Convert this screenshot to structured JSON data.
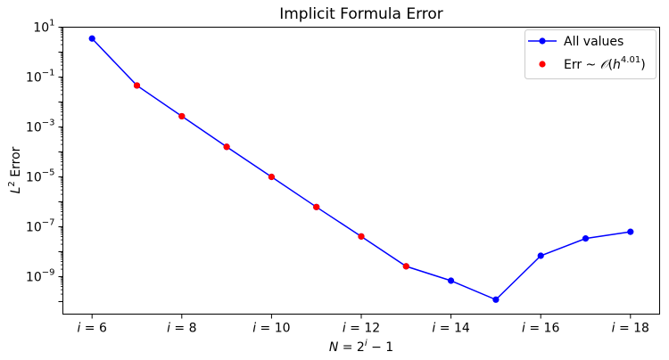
{
  "chart_data": {
    "type": "line",
    "title": "Implicit Formula Error",
    "xlabel": "N = 2^i − 1",
    "ylabel": "L^2 Error",
    "yscale": "log",
    "ylim_exponent": [
      -10.5,
      1.0
    ],
    "xlim": [
      5.35,
      18.65
    ],
    "x_tick_labels": [
      "i = 6",
      "i = 8",
      "i = 10",
      "i = 12",
      "i = 14",
      "i = 16",
      "i = 18"
    ],
    "x_ticks": [
      6,
      8,
      10,
      12,
      14,
      16,
      18
    ],
    "y_tick_exponents": [
      1,
      -1,
      -3,
      -5,
      -7,
      -9
    ],
    "y_tick_labels": [
      "10^1",
      "10^-1",
      "10^-3",
      "10^-5",
      "10^-7",
      "10^-9"
    ],
    "legend_position": "upper right",
    "series": [
      {
        "name": "All values",
        "style": "line-with-markers",
        "color": "#0000ff",
        "x": [
          6,
          7,
          8,
          9,
          10,
          11,
          12,
          13,
          14,
          15,
          16,
          17,
          18
        ],
        "y": [
          3.5,
          0.046,
          0.0027,
          0.00016,
          1e-05,
          6.2e-07,
          4.1e-08,
          2.6e-09,
          6.9e-10,
          1.2e-10,
          6.9e-09,
          3.4e-08,
          6.3e-08
        ]
      },
      {
        "name": "Err ~ O(h^4.01)",
        "style": "scatter",
        "color": "#ff0000",
        "x": [
          7,
          8,
          9,
          10,
          11,
          12,
          13
        ],
        "y": [
          0.046,
          0.0027,
          0.00016,
          1e-05,
          6.2e-07,
          4.1e-08,
          2.6e-09
        ]
      }
    ]
  }
}
